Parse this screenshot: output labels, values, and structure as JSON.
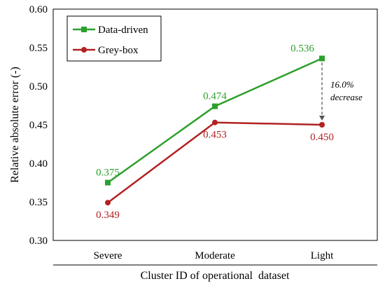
{
  "chart_data": {
    "type": "line",
    "categories": [
      "Severe",
      "Moderate",
      "Light"
    ],
    "series": [
      {
        "name": "Data-driven",
        "values": [
          0.375,
          0.474,
          0.536
        ],
        "labels": [
          "0.375",
          "0.474",
          "0.536"
        ],
        "color": "#2ca02c"
      },
      {
        "name": "Grey-box",
        "values": [
          0.349,
          0.453,
          0.45
        ],
        "labels": [
          "0.349",
          "0.453",
          "0.450"
        ],
        "color": "#b22222"
      }
    ],
    "xlabel": "Cluster ID of operational  dataset",
    "ylabel": "Relative absolute error  (-)",
    "ylim": [
      0.3,
      0.6
    ],
    "yticks": [
      "0.30",
      "0.35",
      "0.40",
      "0.45",
      "0.50",
      "0.55",
      "0.60"
    ],
    "grid": false,
    "legend_position": "top-left",
    "annotation": {
      "line1": "16.0%",
      "line2": "decrease"
    }
  }
}
